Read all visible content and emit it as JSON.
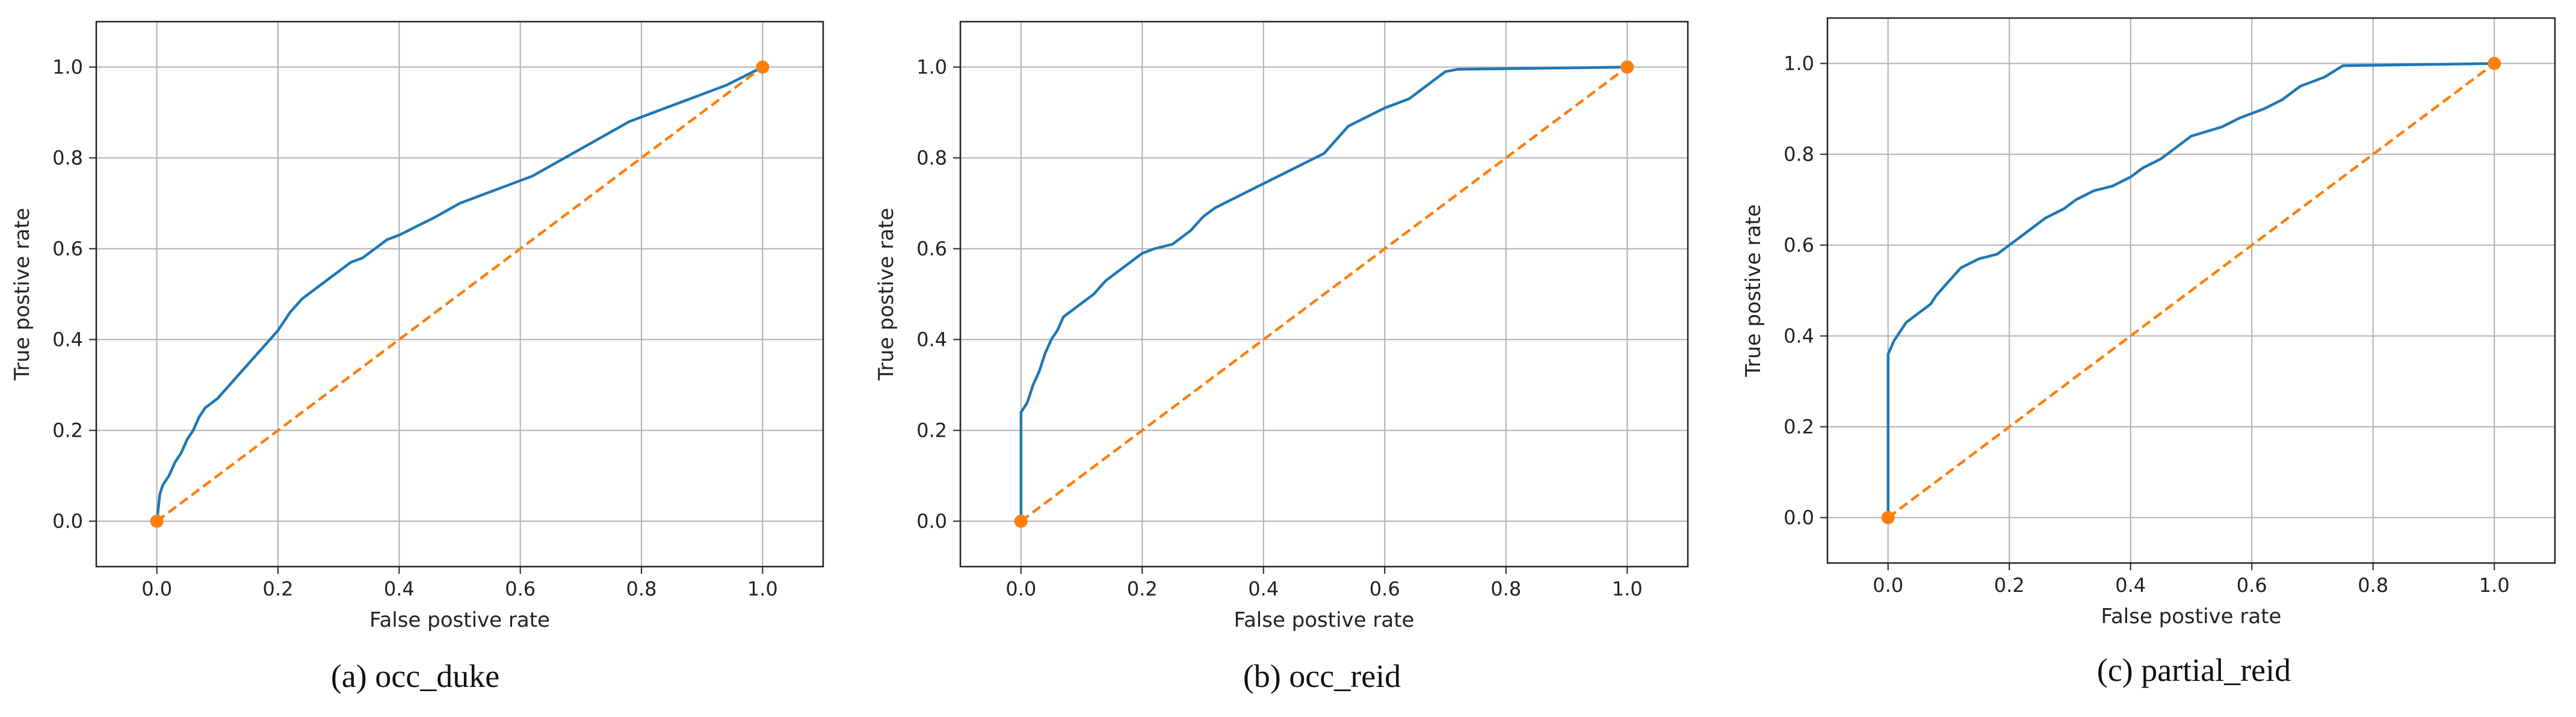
{
  "chart_data": [
    {
      "type": "line",
      "caption": "(a) occ_duke",
      "xlabel": "False postive rate",
      "ylabel": "True postive rate",
      "xlim": [
        -0.1,
        1.1
      ],
      "ylim": [
        -0.1,
        1.1
      ],
      "xticks": [
        "0.0",
        "0.2",
        "0.4",
        "0.6",
        "0.8",
        "1.0"
      ],
      "yticks": [
        "0.0",
        "0.2",
        "0.4",
        "0.6",
        "0.8",
        "1.0"
      ],
      "grid": true,
      "series": [
        {
          "color": "#1f77b4",
          "style": "solid",
          "x": [
            0.0,
            0.005,
            0.01,
            0.02,
            0.03,
            0.04,
            0.05,
            0.06,
            0.07,
            0.08,
            0.1,
            0.12,
            0.14,
            0.16,
            0.18,
            0.2,
            0.22,
            0.24,
            0.26,
            0.28,
            0.3,
            0.32,
            0.34,
            0.36,
            0.38,
            0.4,
            0.43,
            0.46,
            0.5,
            0.54,
            0.58,
            0.62,
            0.66,
            0.7,
            0.74,
            0.78,
            0.82,
            0.86,
            0.9,
            0.94,
            0.97,
            1.0
          ],
          "y": [
            0.0,
            0.06,
            0.08,
            0.1,
            0.13,
            0.15,
            0.18,
            0.2,
            0.23,
            0.25,
            0.27,
            0.3,
            0.33,
            0.36,
            0.39,
            0.42,
            0.46,
            0.49,
            0.51,
            0.53,
            0.55,
            0.57,
            0.58,
            0.6,
            0.62,
            0.63,
            0.65,
            0.67,
            0.7,
            0.72,
            0.74,
            0.76,
            0.79,
            0.82,
            0.85,
            0.88,
            0.9,
            0.92,
            0.94,
            0.96,
            0.98,
            1.0
          ]
        },
        {
          "color": "#ff7f0e",
          "style": "dashed",
          "markers": true,
          "x": [
            0.0,
            1.0
          ],
          "y": [
            0.0,
            1.0
          ]
        }
      ]
    },
    {
      "type": "line",
      "caption": "(b) occ_reid",
      "xlabel": "False postive rate",
      "ylabel": "True postive rate",
      "xlim": [
        -0.1,
        1.1
      ],
      "ylim": [
        -0.1,
        1.1
      ],
      "xticks": [
        "0.0",
        "0.2",
        "0.4",
        "0.6",
        "0.8",
        "1.0"
      ],
      "yticks": [
        "0.0",
        "0.2",
        "0.4",
        "0.6",
        "0.8",
        "1.0"
      ],
      "grid": true,
      "series": [
        {
          "color": "#1f77b4",
          "style": "solid",
          "x": [
            0.0,
            0.0,
            0.01,
            0.02,
            0.03,
            0.04,
            0.05,
            0.06,
            0.07,
            0.08,
            0.1,
            0.12,
            0.14,
            0.16,
            0.18,
            0.2,
            0.22,
            0.25,
            0.28,
            0.3,
            0.32,
            0.35,
            0.38,
            0.41,
            0.44,
            0.47,
            0.5,
            0.52,
            0.54,
            0.57,
            0.6,
            0.64,
            0.66,
            0.68,
            0.7,
            0.72,
            1.0
          ],
          "y": [
            0.0,
            0.24,
            0.26,
            0.3,
            0.33,
            0.37,
            0.4,
            0.42,
            0.45,
            0.46,
            0.48,
            0.5,
            0.53,
            0.55,
            0.57,
            0.59,
            0.6,
            0.61,
            0.64,
            0.67,
            0.69,
            0.71,
            0.73,
            0.75,
            0.77,
            0.79,
            0.81,
            0.84,
            0.87,
            0.89,
            0.91,
            0.93,
            0.95,
            0.97,
            0.99,
            0.995,
            1.0
          ]
        },
        {
          "color": "#ff7f0e",
          "style": "dashed",
          "markers": true,
          "x": [
            0.0,
            1.0
          ],
          "y": [
            0.0,
            1.0
          ]
        }
      ]
    },
    {
      "type": "line",
      "caption": "(c) partial_reid",
      "xlabel": "False postive rate",
      "ylabel": "True postive rate",
      "xlim": [
        -0.1,
        1.1
      ],
      "ylim": [
        -0.1,
        1.1
      ],
      "xticks": [
        "0.0",
        "0.2",
        "0.4",
        "0.6",
        "0.8",
        "1.0"
      ],
      "yticks": [
        "0.0",
        "0.2",
        "0.4",
        "0.6",
        "0.8",
        "1.0"
      ],
      "grid": true,
      "series": [
        {
          "color": "#1f77b4",
          "style": "solid",
          "x": [
            0.0,
            0.0,
            0.01,
            0.02,
            0.03,
            0.05,
            0.07,
            0.08,
            0.1,
            0.12,
            0.15,
            0.18,
            0.2,
            0.23,
            0.26,
            0.29,
            0.31,
            0.34,
            0.37,
            0.4,
            0.42,
            0.45,
            0.47,
            0.5,
            0.55,
            0.58,
            0.62,
            0.65,
            0.68,
            0.72,
            0.75,
            1.0
          ],
          "y": [
            0.0,
            0.36,
            0.39,
            0.41,
            0.43,
            0.45,
            0.47,
            0.49,
            0.52,
            0.55,
            0.57,
            0.58,
            0.6,
            0.63,
            0.66,
            0.68,
            0.7,
            0.72,
            0.73,
            0.75,
            0.77,
            0.79,
            0.81,
            0.84,
            0.86,
            0.88,
            0.9,
            0.92,
            0.95,
            0.97,
            0.995,
            1.0
          ]
        },
        {
          "color": "#ff7f0e",
          "style": "dashed",
          "markers": true,
          "x": [
            0.0,
            1.0
          ],
          "y": [
            0.0,
            1.0
          ]
        }
      ]
    }
  ]
}
